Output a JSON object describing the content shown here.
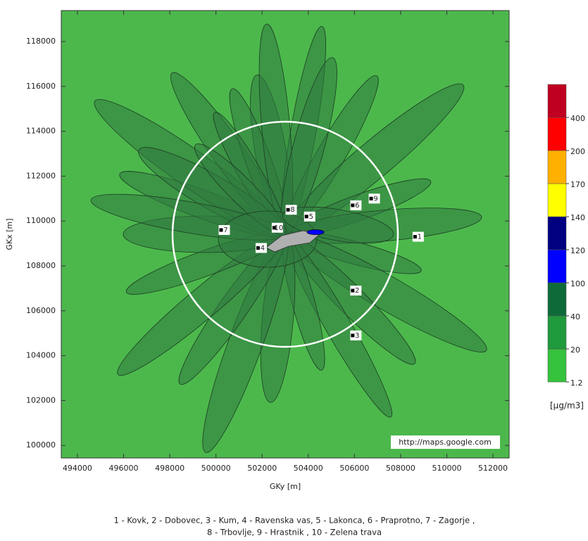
{
  "map": {
    "x_axis": {
      "label": "GKy [m]",
      "lim": [
        493300,
        512700
      ],
      "ticks": [
        494000,
        496000,
        498000,
        500000,
        502000,
        504000,
        506000,
        508000,
        510000,
        512000
      ]
    },
    "y_axis": {
      "label": "GKx [m]",
      "lim": [
        99440,
        119380
      ],
      "ticks": [
        100000,
        102000,
        104000,
        106000,
        108000,
        110000,
        112000,
        114000,
        116000,
        118000
      ]
    },
    "colorbar": {
      "unit": "[µg/m3]",
      "levels": [
        1.2,
        20,
        40,
        100,
        120,
        140,
        170,
        200,
        400
      ],
      "colors": [
        "#35c23d",
        "#1f9a3c",
        "#0f6a3a",
        "#0000ff",
        "#000080",
        "#ffff00",
        "#ffb000",
        "#ff0000",
        "#c00020"
      ]
    },
    "stations": [
      {
        "id": 1,
        "x": 508700,
        "y": 109300
      },
      {
        "id": 2,
        "x": 506000,
        "y": 106900
      },
      {
        "id": 3,
        "x": 506000,
        "y": 104900
      },
      {
        "id": 4,
        "x": 501900,
        "y": 108800
      },
      {
        "id": 5,
        "x": 504000,
        "y": 110200
      },
      {
        "id": 6,
        "x": 506000,
        "y": 110700
      },
      {
        "id": 7,
        "x": 500300,
        "y": 109600
      },
      {
        "id": 8,
        "x": 503200,
        "y": 110500
      },
      {
        "id": 9,
        "x": 506800,
        "y": 111000
      },
      {
        "id": 10,
        "x": 502600,
        "y": 109700
      }
    ],
    "attribution": "http://maps.google.com",
    "caption": [
      "1 - Kovk, 2 - Dobovec, 3 - Kum, 4 - Ravenska vas, 5 - Lakonca, 6 - Praprotno, 7 - Zagorje ,",
      "8 - Trbovlje, 9 - Hrastnik , 10 - Zelena trava"
    ]
  }
}
